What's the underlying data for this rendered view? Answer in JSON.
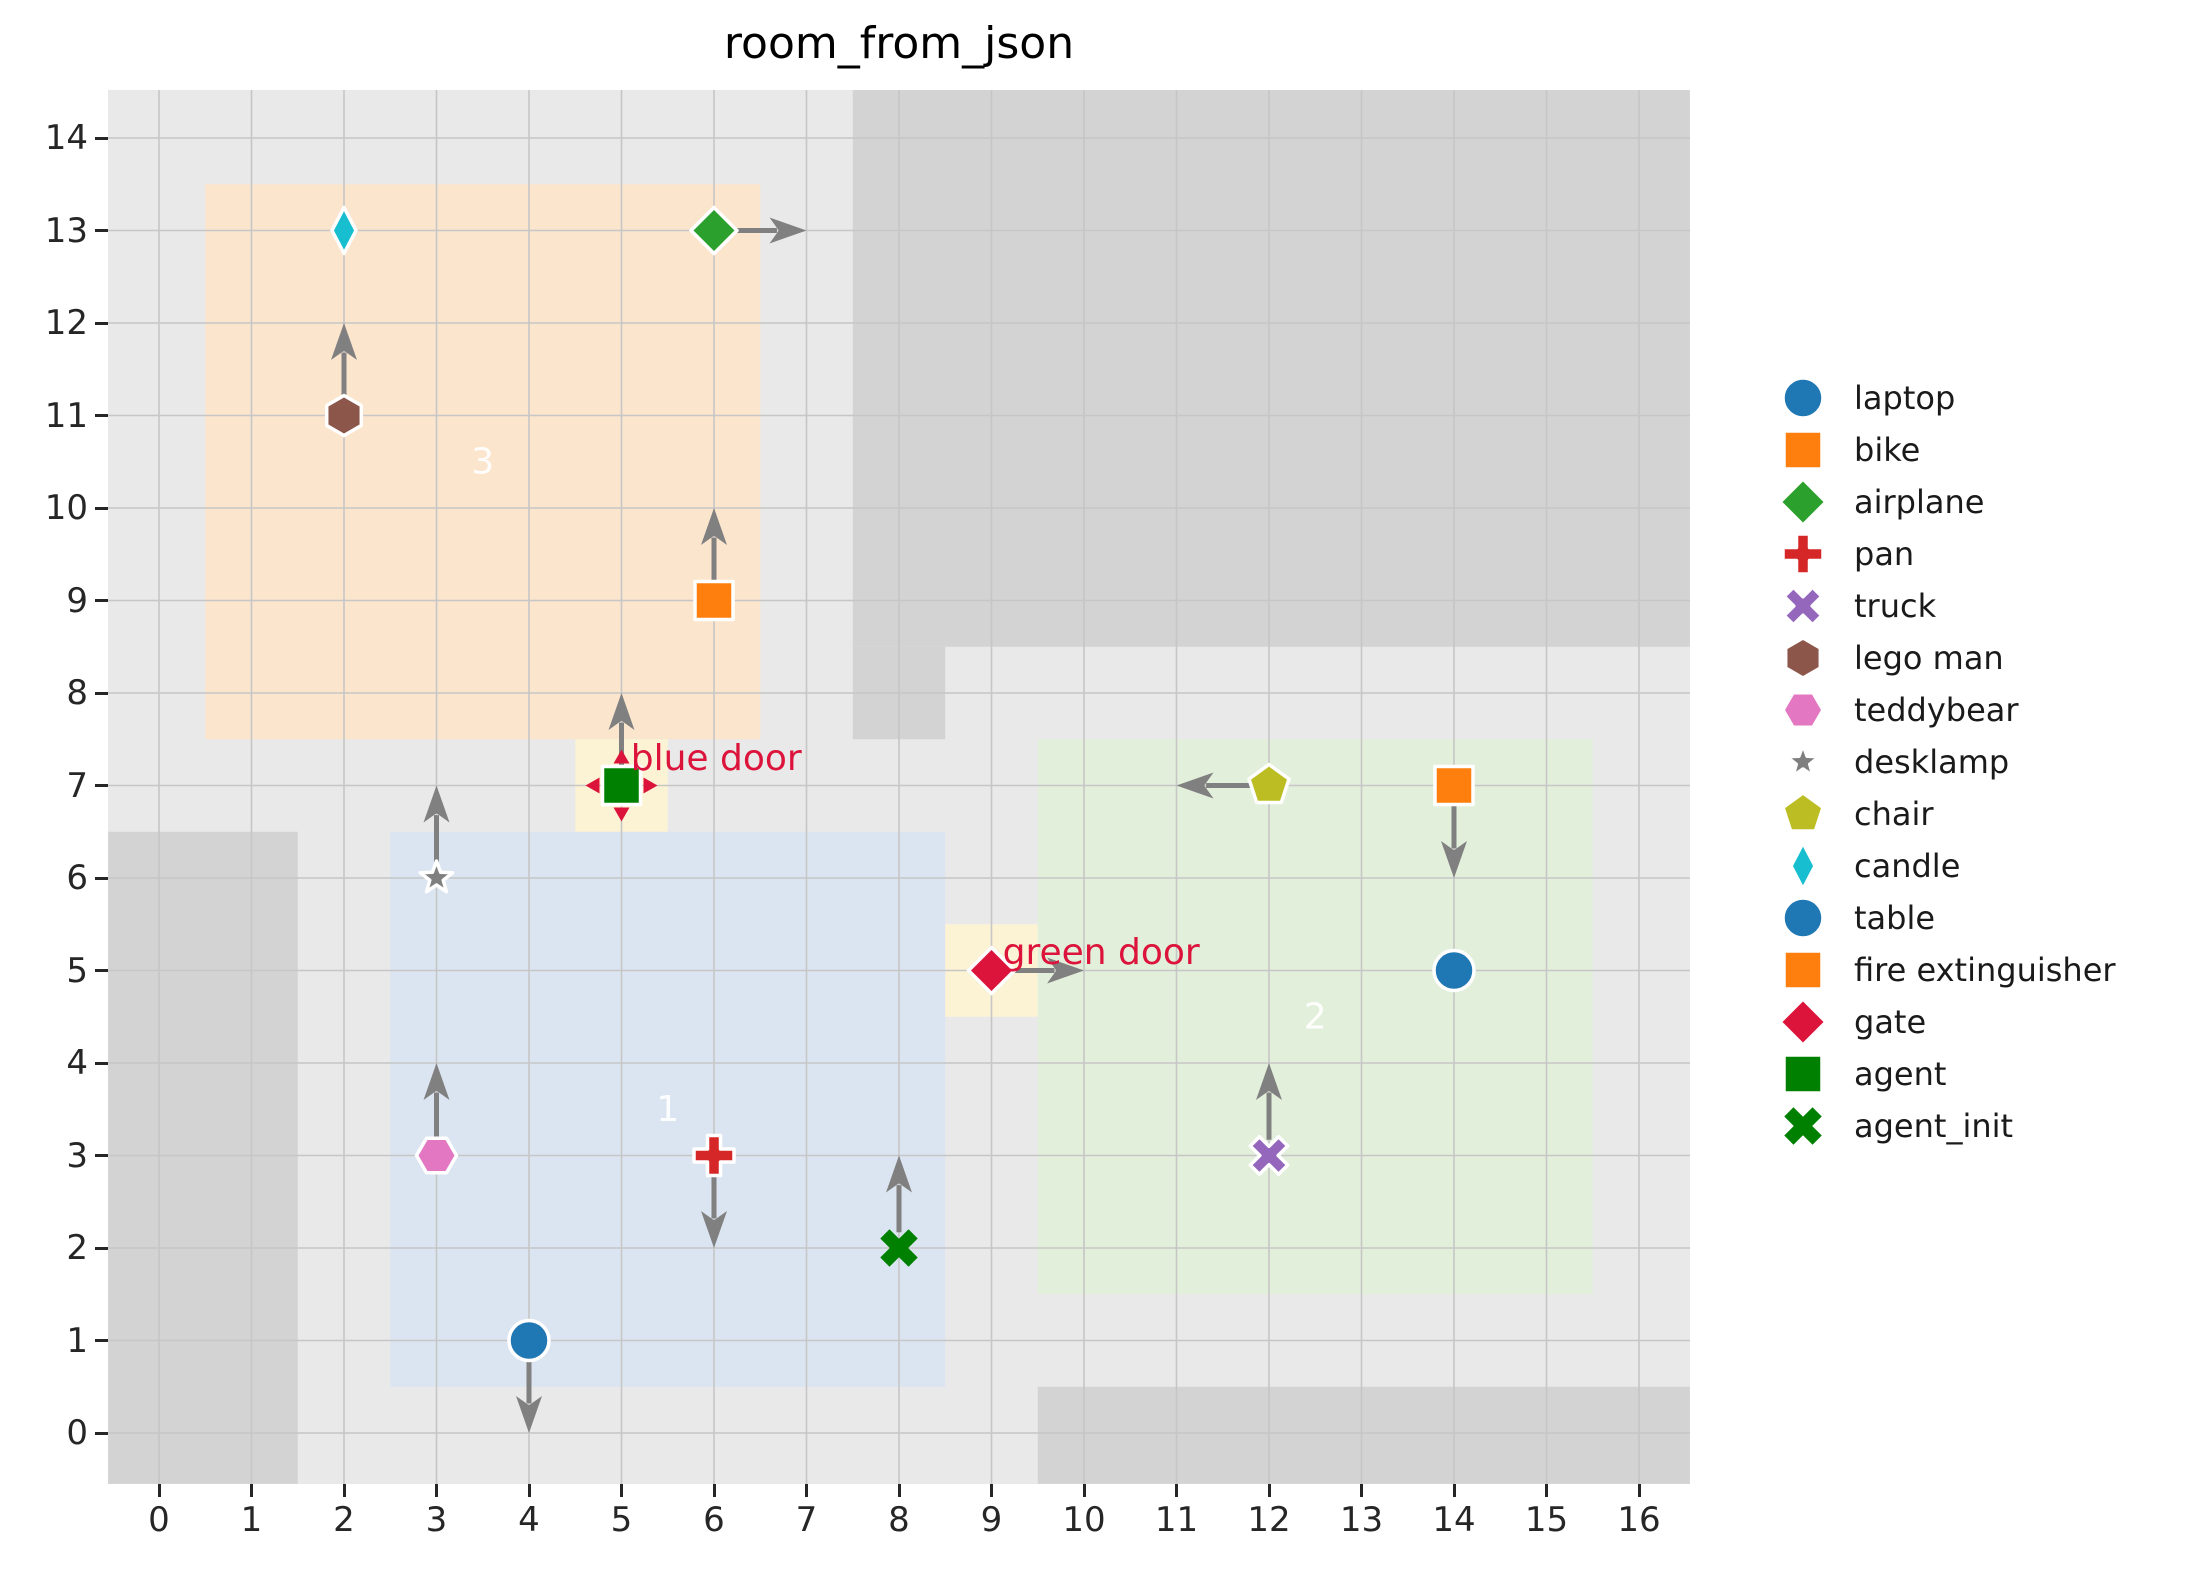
{
  "chart_data": {
    "type": "scatter",
    "title": "room_from_json",
    "xlabel": "",
    "ylabel": "",
    "grid": true,
    "legend_position": "right",
    "xlim": [
      -0.55,
      16.55
    ],
    "ylim": [
      -0.55,
      14.52
    ],
    "x_ticks": [
      0,
      1,
      2,
      3,
      4,
      5,
      6,
      7,
      8,
      9,
      10,
      11,
      12,
      13,
      14,
      15,
      16
    ],
    "y_ticks": [
      0,
      1,
      2,
      3,
      4,
      5,
      6,
      7,
      8,
      9,
      10,
      11,
      12,
      13,
      14
    ],
    "colors": {
      "floor": "#e9e9e9",
      "wall": "#d3d3d3",
      "gridline": "#c6c6c6",
      "arrow": "#808080",
      "door_cell": "#fcf3d5",
      "door_text": "#dc143c",
      "room_label": "rgba(255,255,255,0.92)"
    },
    "walls": [
      {
        "name": "wall-left-column",
        "x1": -0.55,
        "y1": -0.55,
        "x2": 1.5,
        "y2": 6.5
      },
      {
        "name": "wall-top-right",
        "x1": 7.5,
        "y1": 8.5,
        "x2": 16.55,
        "y2": 14.52
      },
      {
        "name": "wall-middle-stub",
        "x1": 7.5,
        "y1": 7.5,
        "x2": 8.5,
        "y2": 8.5
      },
      {
        "name": "wall-bottom-right",
        "x1": 9.5,
        "y1": -0.55,
        "x2": 16.55,
        "y2": 0.5
      }
    ],
    "rooms": [
      {
        "label": "1",
        "x1": 2.5,
        "y1": 0.5,
        "x2": 8.5,
        "y2": 6.5,
        "color": "#dbe5f1",
        "label_x": 5.5,
        "label_y": 3.5
      },
      {
        "label": "2",
        "x1": 9.5,
        "y1": 1.5,
        "x2": 15.5,
        "y2": 7.5,
        "color": "#e2efda",
        "label_x": 12.5,
        "label_y": 4.5
      },
      {
        "label": "3",
        "x1": 0.5,
        "y1": 7.5,
        "x2": 6.5,
        "y2": 13.5,
        "color": "#fce5cd",
        "label_x": 3.5,
        "label_y": 10.5
      }
    ],
    "doors": [
      {
        "label": "blue door",
        "x1": 4.5,
        "y1": 6.5,
        "x2": 5.5,
        "y2": 7.5,
        "label_x": 5.1,
        "label_y": 7.17
      },
      {
        "label": "green door",
        "x1": 8.5,
        "y1": 4.5,
        "x2": 9.5,
        "y2": 5.5,
        "label_x": 9.12,
        "label_y": 5.07
      }
    ],
    "objects": [
      {
        "name": "candle",
        "shape": "thin-diamond",
        "color": "#17becf",
        "x": 2,
        "y": 13,
        "arrow": null
      },
      {
        "name": "airplane",
        "shape": "diamond",
        "color": "#2ca02c",
        "x": 6,
        "y": 13,
        "arrow": "right"
      },
      {
        "name": "lego man",
        "shape": "hexagon-v",
        "color": "#8c564b",
        "x": 2,
        "y": 11,
        "arrow": "up"
      },
      {
        "name": "bike",
        "shape": "square",
        "color": "#ff7f0e",
        "x": 6,
        "y": 9,
        "arrow": "up"
      },
      {
        "name": "agent",
        "shape": "square",
        "color": "#008000",
        "x": 5,
        "y": 7,
        "arrow": "up",
        "direction_markers": true
      },
      {
        "name": "desklamp",
        "shape": "star",
        "color": "#7f7f7f",
        "x": 3,
        "y": 6,
        "arrow": "up"
      },
      {
        "name": "teddybear",
        "shape": "hexagon-h",
        "color": "#e377c2",
        "x": 3,
        "y": 3,
        "arrow": "up"
      },
      {
        "name": "pan",
        "shape": "plus",
        "color": "#d62728",
        "x": 6,
        "y": 3,
        "arrow": "down"
      },
      {
        "name": "table",
        "shape": "circle",
        "color": "#1f77b4",
        "x": 4,
        "y": 1,
        "arrow": "down"
      },
      {
        "name": "agent_init",
        "shape": "xmark",
        "color": "#008000",
        "x": 8,
        "y": 2,
        "arrow": "up",
        "no_edge": true
      },
      {
        "name": "gate",
        "shape": "diamond",
        "color": "#dc143c",
        "x": 9,
        "y": 5,
        "arrow": "right"
      },
      {
        "name": "chair",
        "shape": "pentagon",
        "color": "#bcbd22",
        "x": 12,
        "y": 7,
        "arrow": "left"
      },
      {
        "name": "fire extinguisher",
        "shape": "square",
        "color": "#ff7f0e",
        "x": 14,
        "y": 7,
        "arrow": "down"
      },
      {
        "name": "truck",
        "shape": "xmark",
        "color": "#9467bd",
        "x": 12,
        "y": 3,
        "arrow": "up"
      },
      {
        "name": "laptop",
        "shape": "circle",
        "color": "#1f77b4",
        "x": 14,
        "y": 5,
        "arrow": null
      }
    ],
    "legend": [
      {
        "label": "laptop",
        "shape": "circle",
        "color": "#1f77b4"
      },
      {
        "label": "bike",
        "shape": "square",
        "color": "#ff7f0e"
      },
      {
        "label": "airplane",
        "shape": "diamond",
        "color": "#2ca02c"
      },
      {
        "label": "pan",
        "shape": "plus",
        "color": "#d62728"
      },
      {
        "label": "truck",
        "shape": "xmark",
        "color": "#9467bd"
      },
      {
        "label": "lego man",
        "shape": "hexagon-v",
        "color": "#8c564b"
      },
      {
        "label": "teddybear",
        "shape": "hexagon-h",
        "color": "#e377c2"
      },
      {
        "label": "desklamp",
        "shape": "star",
        "color": "#7f7f7f"
      },
      {
        "label": "chair",
        "shape": "pentagon",
        "color": "#bcbd22"
      },
      {
        "label": "candle",
        "shape": "thin-diamond",
        "color": "#17becf"
      },
      {
        "label": "table",
        "shape": "circle",
        "color": "#1f77b4"
      },
      {
        "label": "fire extinguisher",
        "shape": "square",
        "color": "#ff7f0e"
      },
      {
        "label": "gate",
        "shape": "diamond",
        "color": "#dc143c"
      },
      {
        "label": "agent",
        "shape": "square",
        "color": "#008000"
      },
      {
        "label": "agent_init",
        "shape": "xmark",
        "color": "#008000",
        "no_edge": true
      }
    ]
  }
}
